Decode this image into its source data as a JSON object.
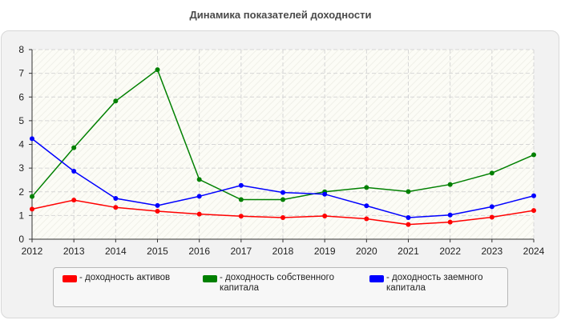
{
  "chart_data": {
    "type": "line",
    "title": "Динамика показателей доходности",
    "xlabel": "",
    "ylabel": "",
    "categories": [
      "2012",
      "2013",
      "2014",
      "2015",
      "2016",
      "2017",
      "2018",
      "2019",
      "2020",
      "2021",
      "2022",
      "2023",
      "2024"
    ],
    "ylim": [
      0,
      8
    ],
    "yticks": [
      "0",
      "1",
      "2",
      "3",
      "4",
      "5",
      "6",
      "7",
      "8"
    ],
    "grid": true,
    "legend_position": "bottom",
    "series": [
      {
        "name": "- доходность активов",
        "color": "#ff0000",
        "values": [
          1.27,
          1.65,
          1.34,
          1.18,
          1.06,
          0.97,
          0.91,
          0.98,
          0.86,
          0.62,
          0.72,
          0.93,
          1.21
        ]
      },
      {
        "name": "- доходность собственного капитала",
        "color": "#008000",
        "values": [
          1.8,
          3.86,
          5.83,
          7.15,
          2.52,
          1.67,
          1.67,
          2.0,
          2.18,
          2.01,
          2.31,
          2.79,
          3.56
        ]
      },
      {
        "name": "- доходность заемного капитала",
        "color": "#0000ff",
        "values": [
          4.24,
          2.87,
          1.72,
          1.42,
          1.81,
          2.27,
          1.97,
          1.9,
          1.41,
          0.91,
          1.02,
          1.37,
          1.83
        ]
      }
    ]
  }
}
